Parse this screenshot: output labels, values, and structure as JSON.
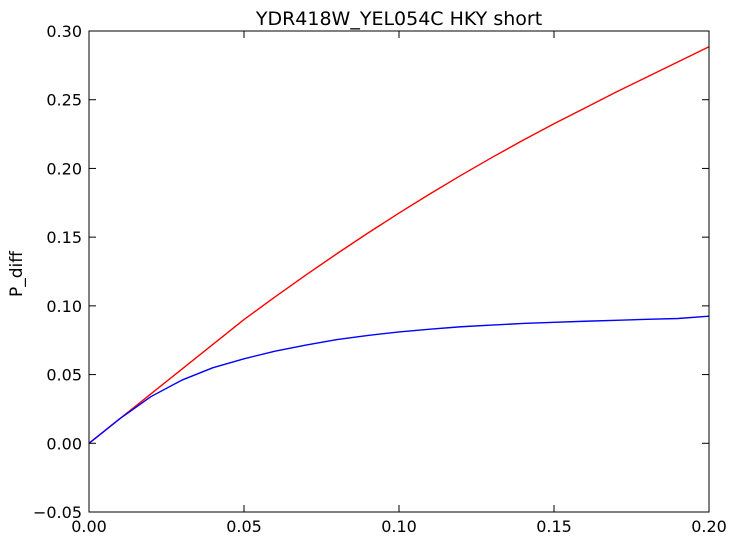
{
  "chart_data": {
    "type": "line",
    "title": "YDR418W_YEL054C HKY short",
    "xlabel": "",
    "ylabel": "P_diff",
    "xlim": [
      0.0,
      0.2
    ],
    "ylim": [
      -0.05,
      0.3
    ],
    "grid": false,
    "legend": "none",
    "x_tick_labels": [
      "0.00",
      "0.05",
      "0.10",
      "0.15",
      "0.20"
    ],
    "x_tick_values": [
      0.0,
      0.05,
      0.1,
      0.15,
      0.2
    ],
    "y_tick_labels": [
      "−0.05",
      "0.00",
      "0.05",
      "0.10",
      "0.15",
      "0.20",
      "0.25",
      "0.30"
    ],
    "y_tick_values": [
      -0.05,
      0.0,
      0.05,
      0.1,
      0.15,
      0.2,
      0.25,
      0.3
    ],
    "x": [
      0.0,
      0.01,
      0.02,
      0.03,
      0.04,
      0.05,
      0.06,
      0.07,
      0.08,
      0.09,
      0.1,
      0.11,
      0.12,
      0.13,
      0.14,
      0.15,
      0.16,
      0.17,
      0.18,
      0.19,
      0.2
    ],
    "series": [
      {
        "color": "#ff0000",
        "values": [
          0.0,
          0.018,
          0.036,
          0.054,
          0.072,
          0.09,
          0.1065,
          0.1225,
          0.138,
          0.153,
          0.1675,
          0.1815,
          0.195,
          0.208,
          0.2205,
          0.2325,
          0.244,
          0.2555,
          0.2665,
          0.2775,
          0.2885
        ]
      },
      {
        "color": "#0000ff",
        "values": [
          0.0,
          0.018,
          0.034,
          0.046,
          0.055,
          0.0615,
          0.067,
          0.0715,
          0.0755,
          0.0785,
          0.081,
          0.083,
          0.0848,
          0.086,
          0.0872,
          0.088,
          0.0888,
          0.0895,
          0.0902,
          0.0908,
          0.0925
        ]
      }
    ]
  }
}
